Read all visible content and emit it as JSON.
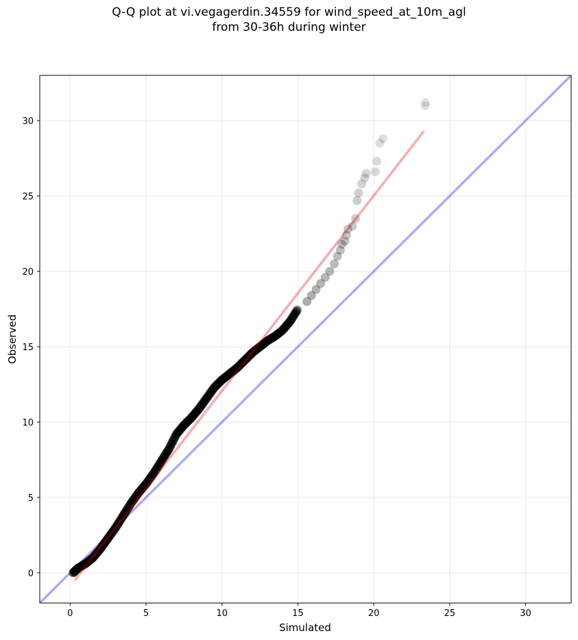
{
  "chart_data": {
    "type": "scatter",
    "title": "Q-Q plot at vi.vegagerdin.34559 for wind_speed_at_10m_agl",
    "subtitle": "from 30-36h during winter",
    "xlabel": "Simulated",
    "ylabel": "Observed",
    "xlim": [
      -2,
      33
    ],
    "ylim": [
      -2,
      33
    ],
    "xticks": [
      0,
      5,
      10,
      15,
      20,
      25,
      30
    ],
    "yticks": [
      0,
      5,
      10,
      15,
      20,
      25,
      30
    ],
    "grid": true,
    "point_color": "#000000",
    "reference_line": {
      "x": [
        -2,
        33
      ],
      "y": [
        -2,
        33
      ],
      "color": "#0000ee"
    },
    "fit_line": {
      "x": [
        0.3,
        23.3
      ],
      "y": [
        -0.5,
        29.3
      ],
      "color": "#ee0000"
    },
    "quantile_curve": {
      "x": [
        0.2,
        0.5,
        1.0,
        1.5,
        2.0,
        2.5,
        3.0,
        3.5,
        4.0,
        4.5,
        5.0,
        5.5,
        6.0,
        6.5,
        7.0,
        7.5,
        8.0,
        8.5,
        9.0,
        9.5,
        10.0,
        10.5,
        11.0,
        11.5,
        12.0,
        12.5,
        13.0,
        13.5,
        14.0,
        14.5,
        15.0
      ],
      "y": [
        0.0,
        0.3,
        0.6,
        1.0,
        1.6,
        2.3,
        3.0,
        3.8,
        4.6,
        5.3,
        5.9,
        6.6,
        7.4,
        8.2,
        9.2,
        9.8,
        10.3,
        10.9,
        11.6,
        12.3,
        12.8,
        13.2,
        13.6,
        14.1,
        14.6,
        15.0,
        15.4,
        15.7,
        16.1,
        16.7,
        17.5
      ]
    },
    "tail_points": {
      "x": [
        15.6,
        15.9,
        16.2,
        16.5,
        16.8,
        17.1,
        17.4,
        17.6,
        17.8,
        17.9,
        18.1,
        18.2,
        18.3,
        18.6,
        18.8,
        18.9,
        19.0,
        19.2,
        19.4,
        19.5,
        20.1,
        20.2,
        20.4,
        20.6,
        23.4,
        23.4
      ],
      "y": [
        18.0,
        18.4,
        18.8,
        19.2,
        19.6,
        20.0,
        20.5,
        21.0,
        21.4,
        21.8,
        22.0,
        22.4,
        22.8,
        23.0,
        23.5,
        24.7,
        25.2,
        25.8,
        26.2,
        26.5,
        26.6,
        27.3,
        28.5,
        28.8,
        31.0,
        31.2
      ]
    }
  }
}
